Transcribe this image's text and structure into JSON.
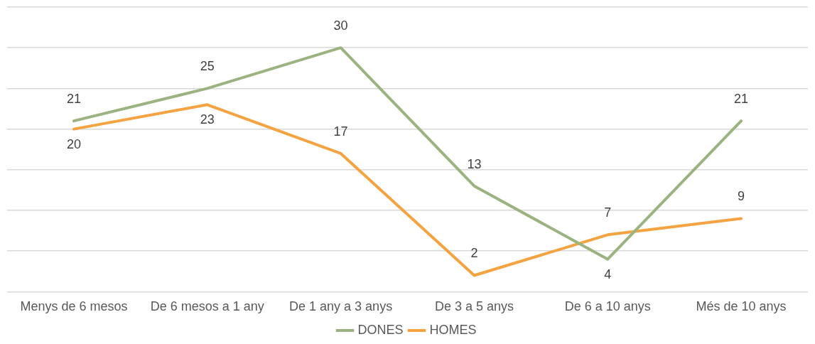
{
  "chart_data": {
    "type": "line",
    "categories": [
      "Menys de 6 mesos",
      "De 6 mesos a 1 any",
      "De 1 any a 3 anys",
      "De 3 a 5 anys",
      "De 6 a 10 anys",
      "Més de 10 anys"
    ],
    "series": [
      {
        "name": "DONES",
        "color": "#9bb281",
        "values": [
          21,
          25,
          30,
          13,
          4,
          21
        ]
      },
      {
        "name": "HOMES",
        "color": "#f4a340",
        "values": [
          20,
          23,
          17,
          2,
          7,
          9
        ]
      }
    ],
    "ylim": [
      0,
      35
    ],
    "yticks": [
      {
        "value": 0,
        "label": null
      },
      {
        "value": 5,
        "label": null
      },
      {
        "value": 10,
        "label": null
      },
      {
        "value": 15,
        "label": null
      },
      {
        "value": 20,
        "label": null
      },
      {
        "value": 25,
        "label": null
      },
      {
        "value": 30,
        "label": null
      },
      {
        "value": 35,
        "label": null
      }
    ],
    "tick_labels": "x",
    "grid": "y",
    "legend": "bottom",
    "marker": "none",
    "line_style": "solid",
    "data_labels": true
  }
}
